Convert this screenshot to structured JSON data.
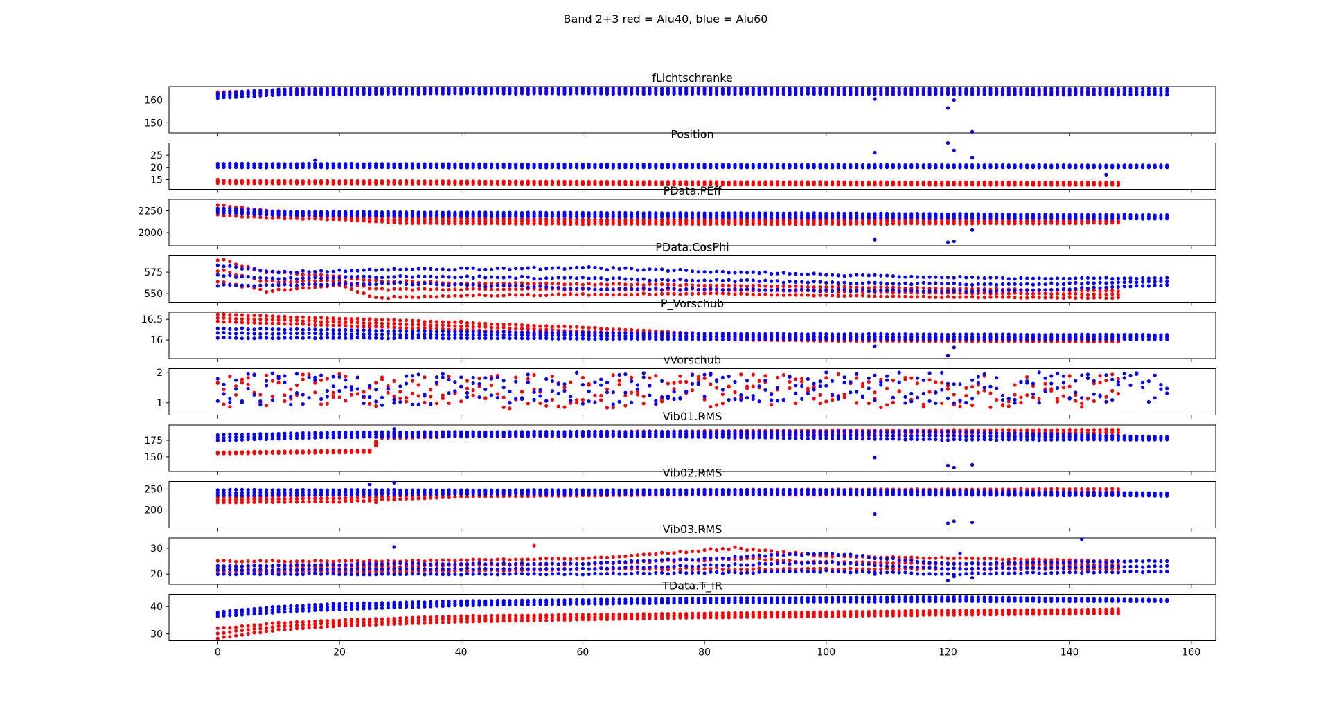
{
  "figure": {
    "suptitle": "Band 2+3 red = Alu40, blue = Alu60",
    "colors": {
      "red": "#ff0000",
      "blue": "#0000ff"
    }
  },
  "chart_data": [
    {
      "type": "scatter",
      "title": "fLichtschranke",
      "xlim": [
        -8,
        164
      ],
      "ylim": [
        145.5,
        166
      ],
      "xticks": [
        0,
        20,
        40,
        60,
        80,
        100,
        120,
        140,
        160
      ],
      "yticks": [
        150,
        160
      ],
      "series": [
        {
          "color": "red",
          "x_max": 148,
          "bands": [
            [
              0,
              162.5,
              163.5
            ],
            [
              12,
              163.0,
              164.5
            ],
            [
              40,
              163.2,
              164.8
            ],
            [
              80,
              163.2,
              164.8
            ],
            [
              148,
              163.2,
              164.8
            ]
          ],
          "outliers": []
        },
        {
          "color": "blue",
          "x_max": 156,
          "bands": [
            [
              0,
              161.0,
              163.0
            ],
            [
              12,
              162.5,
              165.0
            ],
            [
              40,
              163.0,
              165.2
            ],
            [
              80,
              162.8,
              165.2
            ],
            [
              148,
              162.5,
              165.0
            ]
          ],
          "outliers": [
            [
              108,
              160.5
            ],
            [
              120,
              156.5
            ],
            [
              121,
              160
            ],
            [
              124,
              146
            ]
          ]
        }
      ]
    },
    {
      "type": "scatter",
      "title": "Position",
      "xlim": [
        -8,
        164
      ],
      "ylim": [
        11,
        30
      ],
      "xticks": [
        0,
        20,
        40,
        60,
        80,
        100,
        120,
        140,
        160
      ],
      "yticks": [
        15,
        20,
        25
      ],
      "series": [
        {
          "color": "red",
          "x_max": 148,
          "bands": [
            [
              0,
              13.5,
              14.5
            ],
            [
              40,
              13.3,
              14.3
            ],
            [
              80,
              13.0,
              14.0
            ],
            [
              148,
              12.8,
              13.8
            ]
          ],
          "outliers": [
            [
              0,
              15
            ]
          ]
        },
        {
          "color": "blue",
          "x_max": 156,
          "bands": [
            [
              0,
              20.0,
              21.5
            ],
            [
              40,
              20.0,
              21.3
            ],
            [
              100,
              20.0,
              21.0
            ],
            [
              156,
              20.0,
              20.8
            ]
          ],
          "outliers": [
            [
              16,
              23
            ],
            [
              108,
              26
            ],
            [
              120,
              30
            ],
            [
              121,
              27
            ],
            [
              124,
              24
            ],
            [
              146,
              17
            ]
          ]
        }
      ]
    },
    {
      "type": "scatter",
      "title": "PData.PEff",
      "xlim": [
        -8,
        164
      ],
      "ylim": [
        1850,
        2380
      ],
      "xticks": [
        0,
        20,
        40,
        60,
        80,
        100,
        120,
        140,
        160
      ],
      "yticks": [
        2000,
        2250
      ],
      "series": [
        {
          "color": "red",
          "x_max": 148,
          "bands": [
            [
              0,
              2200,
              2320
            ],
            [
              8,
              2170,
              2250
            ],
            [
              20,
              2150,
              2210
            ],
            [
              30,
              2110,
              2170
            ],
            [
              60,
              2100,
              2150
            ],
            [
              100,
              2100,
              2150
            ],
            [
              148,
              2110,
              2160
            ]
          ],
          "outliers": []
        },
        {
          "color": "blue",
          "x_max": 156,
          "bands": [
            [
              0,
              2230,
              2280
            ],
            [
              10,
              2200,
              2240
            ],
            [
              40,
              2190,
              2230
            ],
            [
              100,
              2170,
              2220
            ],
            [
              156,
              2160,
              2200
            ]
          ],
          "outliers": [
            [
              108,
              1920
            ],
            [
              120,
              1890
            ],
            [
              121,
              1900
            ],
            [
              124,
              2030
            ]
          ]
        }
      ]
    },
    {
      "type": "scatter",
      "title": "PData.CosPhi",
      "xlim": [
        -8,
        164
      ],
      "ylim": [
        540,
        594
      ],
      "xticks": [
        0,
        20,
        40,
        60,
        80,
        100,
        120,
        140,
        160
      ],
      "yticks": [
        550,
        575
      ],
      "series": [
        {
          "color": "red",
          "x_max": 148,
          "bands": [
            [
              0,
              565,
              590
            ],
            [
              8,
              553,
              575
            ],
            [
              20,
              560,
              570
            ],
            [
              26,
              545,
              565
            ],
            [
              40,
              548,
              562
            ],
            [
              80,
              550,
              560
            ],
            [
              120,
              546,
              556
            ],
            [
              148,
              545,
              553
            ]
          ],
          "outliers": []
        },
        {
          "color": "blue",
          "x_max": 156,
          "bands": [
            [
              0,
              560,
              583
            ],
            [
              10,
              560,
              575
            ],
            [
              30,
              562,
              578
            ],
            [
              60,
              556,
              580
            ],
            [
              100,
              554,
              572
            ],
            [
              130,
              553,
              568
            ],
            [
              156,
              560,
              568
            ]
          ],
          "outliers": [
            [
              121,
              553
            ]
          ]
        }
      ]
    },
    {
      "type": "scatter",
      "title": "P_Vorschub",
      "xlim": [
        -8,
        164
      ],
      "ylim": [
        15.55,
        16.67
      ],
      "xticks": [
        0,
        20,
        40,
        60,
        80,
        100,
        120,
        140,
        160
      ],
      "yticks": [
        16.0,
        16.5
      ],
      "series": [
        {
          "color": "red",
          "x_max": 148,
          "bands": [
            [
              0,
              16.45,
              16.62
            ],
            [
              20,
              16.35,
              16.52
            ],
            [
              40,
              16.25,
              16.42
            ],
            [
              60,
              16.12,
              16.3
            ],
            [
              80,
              16.02,
              16.15
            ],
            [
              100,
              15.98,
              16.07
            ],
            [
              148,
              15.96,
              16.04
            ]
          ],
          "outliers": [
            [
              40,
              16.45
            ]
          ]
        },
        {
          "color": "blue",
          "x_max": 156,
          "bands": [
            [
              0,
              16.05,
              16.28
            ],
            [
              40,
              16.05,
              16.2
            ],
            [
              80,
              16.02,
              16.15
            ],
            [
              156,
              16.02,
              16.12
            ]
          ],
          "outliers": [
            [
              108,
              15.85
            ],
            [
              120,
              15.62
            ],
            [
              121,
              15.82
            ]
          ]
        }
      ]
    },
    {
      "type": "scatter",
      "title": "vVorschub",
      "xlim": [
        -8,
        164
      ],
      "ylim": [
        0.6,
        2.12
      ],
      "xticks": [
        0,
        20,
        40,
        60,
        80,
        100,
        120,
        140,
        160
      ],
      "yticks": [
        1,
        2
      ],
      "series": [
        {
          "color": "red",
          "x_max": 148,
          "bands": [
            [
              0,
              0.8,
              1.95
            ],
            [
              148,
              0.85,
              1.95
            ]
          ],
          "outliers": []
        },
        {
          "color": "blue",
          "x_max": 156,
          "bands": [
            [
              0,
              0.9,
              2.0
            ],
            [
              156,
              1.0,
              2.0
            ]
          ],
          "outliers": []
        }
      ]
    },
    {
      "type": "scatter",
      "title": "Vib01.RMS",
      "xlim": [
        -8,
        164
      ],
      "ylim": [
        128,
        198
      ],
      "xticks": [
        0,
        20,
        40,
        60,
        80,
        100,
        120,
        140,
        160
      ],
      "yticks": [
        150,
        175
      ],
      "series": [
        {
          "color": "red",
          "x_max": 148,
          "bands": [
            [
              0,
              155,
              157
            ],
            [
              25,
              157,
              160
            ],
            [
              27,
              178,
              186
            ],
            [
              40,
              181,
              187
            ],
            [
              100,
              182,
              190
            ],
            [
              148,
              182,
              191
            ]
          ],
          "outliers": [
            [
              0,
              176
            ],
            [
              26,
              167
            ]
          ]
        },
        {
          "color": "blue",
          "x_max": 156,
          "bands": [
            [
              0,
              175,
              183
            ],
            [
              20,
              180,
              187
            ],
            [
              60,
              182,
              188
            ],
            [
              120,
              176,
              188
            ],
            [
              156,
              176,
              180
            ]
          ],
          "outliers": [
            [
              29,
              192
            ],
            [
              108,
              149
            ],
            [
              120,
              137
            ],
            [
              121,
              134
            ],
            [
              124,
              138
            ]
          ]
        }
      ]
    },
    {
      "type": "scatter",
      "title": "Vib02.RMS",
      "xlim": [
        -8,
        164
      ],
      "ylim": [
        157,
        268
      ],
      "xticks": [
        0,
        20,
        40,
        60,
        80,
        100,
        120,
        140,
        160
      ],
      "yticks": [
        200,
        250
      ],
      "series": [
        {
          "color": "red",
          "x_max": 148,
          "bands": [
            [
              0,
              218,
              230
            ],
            [
              20,
              220,
              236
            ],
            [
              40,
              232,
              244
            ],
            [
              80,
              237,
              248
            ],
            [
              148,
              236,
              250
            ]
          ],
          "outliers": [
            [
              26,
              218
            ]
          ]
        },
        {
          "color": "blue",
          "x_max": 156,
          "bands": [
            [
              0,
              235,
              248
            ],
            [
              40,
              238,
              247
            ],
            [
              100,
              238,
              248
            ],
            [
              156,
              234,
              240
            ]
          ],
          "outliers": [
            [
              25,
              261
            ],
            [
              29,
              265
            ],
            [
              108,
              190
            ],
            [
              120,
              168
            ],
            [
              121,
              173
            ],
            [
              124,
              170
            ]
          ]
        }
      ]
    },
    {
      "type": "scatter",
      "title": "Vib03.RMS",
      "xlim": [
        -8,
        164
      ],
      "ylim": [
        16,
        34
      ],
      "xticks": [
        0,
        20,
        40,
        60,
        80,
        100,
        120,
        140,
        160
      ],
      "yticks": [
        20,
        30
      ],
      "series": [
        {
          "color": "red",
          "x_max": 148,
          "bands": [
            [
              0,
              21,
              25
            ],
            [
              30,
              21,
              25
            ],
            [
              60,
              22,
              26
            ],
            [
              85,
              22,
              30
            ],
            [
              100,
              22,
              27
            ],
            [
              148,
              22,
              25
            ]
          ],
          "outliers": [
            [
              52,
              31
            ]
          ]
        },
        {
          "color": "blue",
          "x_max": 156,
          "bands": [
            [
              0,
              20,
              23
            ],
            [
              30,
              20,
              24
            ],
            [
              60,
              20,
              24
            ],
            [
              100,
              21,
              28
            ],
            [
              120,
              20,
              24
            ],
            [
              156,
              21,
              25
            ]
          ],
          "outliers": [
            [
              29,
              30.5
            ],
            [
              108,
              20
            ],
            [
              120,
              17.5
            ],
            [
              121,
              19
            ],
            [
              122,
              28
            ],
            [
              124,
              18.5
            ],
            [
              142,
              33.5
            ]
          ]
        }
      ]
    },
    {
      "type": "scatter",
      "title": "TData.T_IR",
      "xlim": [
        -8,
        164
      ],
      "ylim": [
        27.5,
        44.5
      ],
      "xticks": [
        0,
        20,
        40,
        60,
        80,
        100,
        120,
        140,
        160
      ],
      "yticks": [
        30,
        40
      ],
      "series": [
        {
          "color": "red",
          "x_max": 148,
          "bands": [
            [
              0,
              28.5,
              32
            ],
            [
              10,
              31.5,
              34
            ],
            [
              20,
              33,
              35
            ],
            [
              40,
              34.5,
              36.5
            ],
            [
              80,
              36,
              37.5
            ],
            [
              120,
              37,
              38.5
            ],
            [
              148,
              37.5,
              39
            ]
          ],
          "outliers": []
        },
        {
          "color": "blue",
          "x_max": 156,
          "bands": [
            [
              0,
              36.5,
              38
            ],
            [
              10,
              38,
              40
            ],
            [
              20,
              39,
              41
            ],
            [
              40,
              40.5,
              42
            ],
            [
              80,
              41.5,
              43
            ],
            [
              120,
              42,
              43.5
            ],
            [
              156,
              42,
              42.5
            ]
          ],
          "outliers": []
        }
      ]
    }
  ]
}
